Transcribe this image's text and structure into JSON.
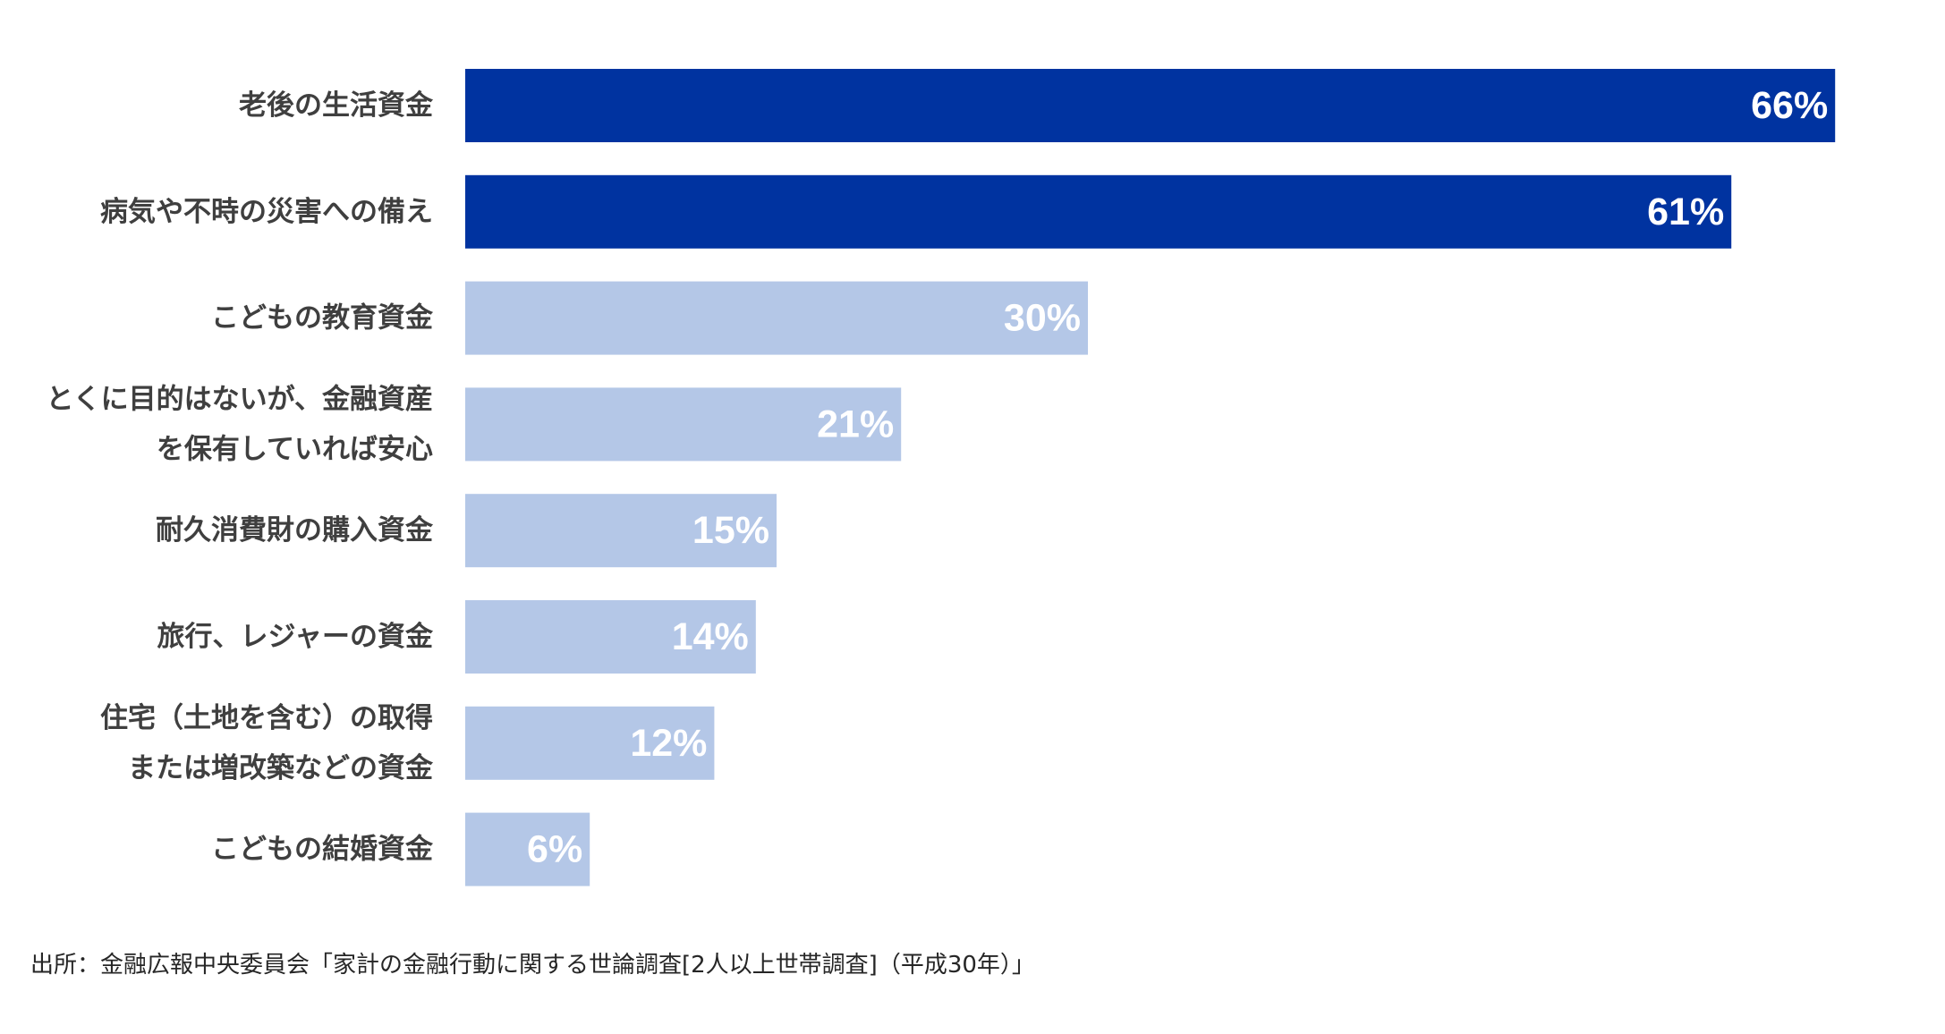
{
  "chart_data": {
    "type": "bar",
    "orientation": "horizontal",
    "categories": [
      [
        "老後の生活資金"
      ],
      [
        "病気や不時の災害への備え"
      ],
      [
        "こどもの教育資金"
      ],
      [
        "とくに目的はないが、金融資産",
        "を保有していれば安心"
      ],
      [
        "耐久消費財の購入資金"
      ],
      [
        "旅行、レジャーの資金"
      ],
      [
        "住宅（土地を含む）の取得",
        "または増改築などの資金"
      ],
      [
        "こどもの結婚資金"
      ]
    ],
    "values": [
      66,
      61,
      30,
      21,
      15,
      14,
      12,
      6
    ],
    "value_labels": [
      "66%",
      "61%",
      "30%",
      "21%",
      "15%",
      "14%",
      "12%",
      "6%"
    ],
    "unit": "%",
    "xlim": [
      0,
      100
    ],
    "grid": false,
    "legend": "none",
    "colors": {
      "highlight": "#0033a0",
      "normal": "#b4c7e7",
      "value_text": "#ffffff",
      "category_text": "#3f3f3f"
    },
    "highlight_count": 2
  },
  "source": "出所：金融広報中央委員会「家計の金融行動に関する世論調査[2人以上世帯調査]（平成30年）」"
}
